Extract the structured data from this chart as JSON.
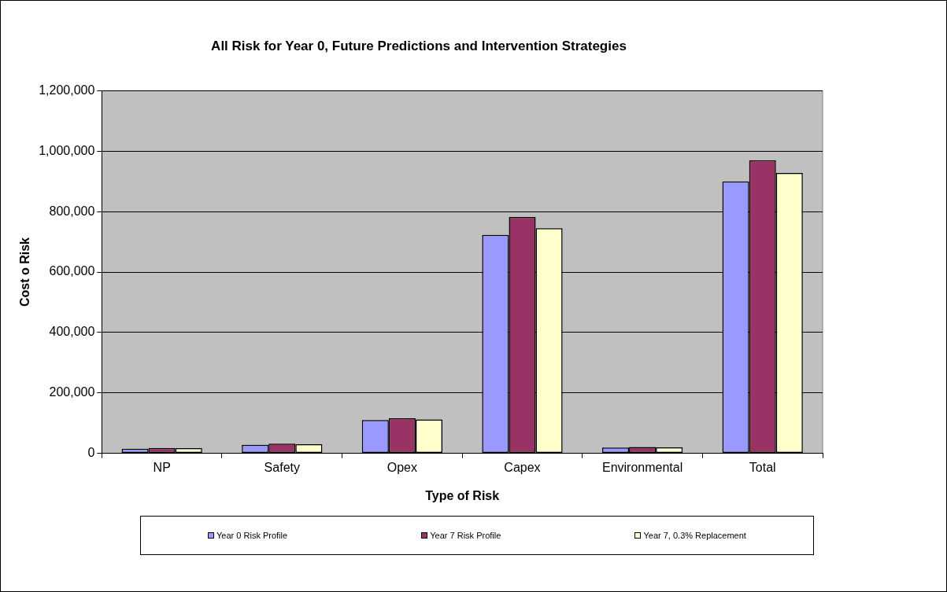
{
  "chart_data": {
    "type": "bar",
    "title": "All Risk for Year 0, Future Predictions and Intervention Strategies",
    "xlabel": "Type of Risk",
    "ylabel": "Cost o Risk",
    "categories": [
      "NP",
      "Safety",
      "Opex",
      "Capex",
      "Environmental",
      "Total"
    ],
    "series": [
      {
        "name": "Year 0 Risk Profile",
        "color": "#9999ff",
        "values": [
          15000,
          28000,
          110000,
          723000,
          19000,
          900000
        ]
      },
      {
        "name": "Year 7 Risk Profile",
        "color": "#993366",
        "values": [
          18000,
          32000,
          116000,
          782000,
          21000,
          970000
        ]
      },
      {
        "name": "Year 7, 0.3% Replacement",
        "color": "#ffffcc",
        "values": [
          17000,
          30000,
          112000,
          745000,
          20000,
          928000
        ]
      }
    ],
    "ylim": [
      0,
      1200000
    ],
    "yticks": [
      {
        "value": 0,
        "label": "0"
      },
      {
        "value": 200000,
        "label": "200,000"
      },
      {
        "value": 400000,
        "label": "400,000"
      },
      {
        "value": 600000,
        "label": "600,000"
      },
      {
        "value": 800000,
        "label": "800,000"
      },
      {
        "value": 1000000,
        "label": "1,000,000"
      },
      {
        "value": 1200000,
        "label": "1,200,000"
      }
    ],
    "grid": "y",
    "legend": "bottom"
  }
}
